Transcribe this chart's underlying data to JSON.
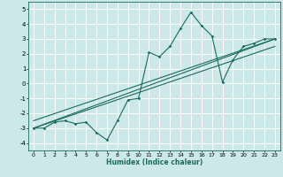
{
  "xlabel": "Humidex (Indice chaleur)",
  "xlim": [
    -0.5,
    23.5
  ],
  "ylim": [
    -4.5,
    5.5
  ],
  "yticks": [
    -4,
    -3,
    -2,
    -1,
    0,
    1,
    2,
    3,
    4,
    5
  ],
  "xticks": [
    0,
    1,
    2,
    3,
    4,
    5,
    6,
    7,
    8,
    9,
    10,
    11,
    12,
    13,
    14,
    15,
    16,
    17,
    18,
    19,
    20,
    21,
    22,
    23
  ],
  "bg_color": "#cce8e8",
  "line_color": "#1a6b5e",
  "grid_color": "#ffffff",
  "curve1_x": [
    0,
    1,
    2,
    3,
    4,
    5,
    6,
    7,
    8,
    9,
    10,
    11,
    12,
    13,
    14,
    15,
    16,
    17,
    18,
    19,
    20,
    21,
    22,
    23
  ],
  "curve1_y": [
    -3.0,
    -3.0,
    -2.6,
    -2.5,
    -2.7,
    -2.6,
    -3.3,
    -3.8,
    -2.5,
    -1.1,
    -1.0,
    2.1,
    1.8,
    2.5,
    3.7,
    4.8,
    3.9,
    3.2,
    0.1,
    1.6,
    2.5,
    2.7,
    3.0,
    3.0
  ],
  "curve2_x": [
    0,
    23
  ],
  "curve2_y": [
    -3.0,
    3.0
  ],
  "curve3_x": [
    0,
    23
  ],
  "curve3_y": [
    -2.5,
    3.0
  ],
  "curve4_x": [
    0,
    23
  ],
  "curve4_y": [
    -3.0,
    2.5
  ]
}
